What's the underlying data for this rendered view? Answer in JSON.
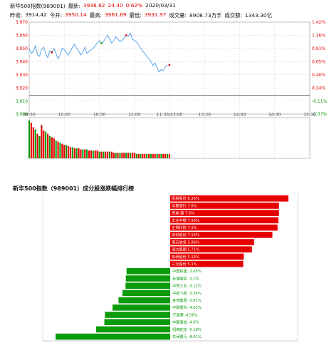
{
  "header": {
    "line1": [
      {
        "text": "新华500指数(989001)",
        "cls": ""
      },
      {
        "text": "最新:",
        "cls": ""
      },
      {
        "text": "3938.82",
        "cls": "red"
      },
      {
        "text": "24.40",
        "cls": "red"
      },
      {
        "text": "0.62%",
        "cls": "red"
      },
      {
        "text": "2020/03/31",
        "cls": ""
      }
    ],
    "line2": [
      {
        "text": "昨收:",
        "cls": ""
      },
      {
        "text": "3914.42",
        "cls": ""
      },
      {
        "text": "今开:",
        "cls": ""
      },
      {
        "text": "3950.14",
        "cls": "red"
      },
      {
        "text": "最高:",
        "cls": ""
      },
      {
        "text": "3961.69",
        "cls": "red"
      },
      {
        "text": "最低:",
        "cls": ""
      },
      {
        "text": "3931.97",
        "cls": "red"
      },
      {
        "text": "成交量:",
        "cls": ""
      },
      {
        "text": "8908.73万手",
        "cls": ""
      },
      {
        "text": "成交额:",
        "cls": ""
      },
      {
        "text": "1343.30亿",
        "cls": ""
      }
    ]
  },
  "chart_data": [
    {
      "type": "line",
      "name": "intraday",
      "prev_close": 3914.42,
      "ylim": [
        3900,
        3970
      ],
      "y_ticks": [
        {
          "v": 3970,
          "label": "3,970",
          "pct": "1.42%",
          "color": "#e60000"
        },
        {
          "v": 3960,
          "label": "3,960",
          "pct": "1.16%",
          "color": "#e60000"
        },
        {
          "v": 3950,
          "label": "3,950",
          "pct": "0.91%",
          "color": "#e60000"
        },
        {
          "v": 3940,
          "label": "3,940",
          "pct": "0.65%",
          "color": "#e60000"
        },
        {
          "v": 3930,
          "label": "3,930",
          "pct": "0.40%",
          "color": "#e60000"
        },
        {
          "v": 3920,
          "label": "3,920",
          "pct": "0.14%",
          "color": "#e60000"
        },
        {
          "v": 3910,
          "label": "3,910",
          "pct": "-0.11%",
          "color": "#0a9b0a"
        },
        {
          "v": 3900,
          "label": "3,900",
          "pct": "-0.37%",
          "color": "#0a9b0a"
        }
      ],
      "x_ticks": [
        "09:30",
        "10:00",
        "10:30",
        "11:00",
        "11:30/13:00",
        "13:30",
        "14:00",
        "14:30",
        "15:00"
      ],
      "price": [
        3950.1,
        3946,
        3948,
        3952,
        3945,
        3944,
        3949,
        3951,
        3946,
        3943,
        3948,
        3947,
        3950,
        3946,
        3942,
        3945,
        3950,
        3949,
        3947,
        3945,
        3948,
        3951,
        3953,
        3950,
        3948,
        3945,
        3947,
        3951,
        3946,
        3948,
        3949,
        3950,
        3952,
        3954,
        3956,
        3954,
        3955,
        3958,
        3960,
        3957,
        3954,
        3956,
        3959,
        3957,
        3955,
        3956,
        3958,
        3960,
        3959,
        3961.7,
        3957,
        3956,
        3955,
        3953,
        3950,
        3948,
        3946,
        3944,
        3942,
        3940,
        3937,
        3939,
        3935,
        3932,
        3934,
        3933,
        3936,
        3937,
        3937.5
      ],
      "markers": [
        {
          "i": 11,
          "c": "#e60000"
        },
        {
          "i": 35,
          "c": "#0a9b0a"
        },
        {
          "i": 47,
          "c": "#e60000"
        },
        {
          "i": 68,
          "c": "#e60000"
        }
      ],
      "volume": [
        34,
        32,
        28,
        26,
        22,
        20,
        30,
        25,
        24,
        22,
        20,
        19,
        18,
        16,
        15,
        14,
        13,
        12,
        12,
        11,
        10,
        10,
        9,
        9,
        9,
        8,
        8,
        8,
        8,
        7,
        7,
        7,
        7,
        7,
        6,
        6,
        6,
        6,
        6,
        6,
        6,
        5,
        5,
        5,
        5,
        5,
        5,
        5,
        5,
        5,
        5,
        5,
        4,
        4,
        4,
        4,
        4,
        4,
        4,
        4,
        4,
        4,
        4,
        4,
        4,
        4,
        4,
        4,
        4
      ],
      "volume_colors": [
        "g",
        "r",
        "r",
        "g",
        "r",
        "g",
        "r",
        "r",
        "g",
        "r",
        "g",
        "r",
        "r",
        "g",
        "r",
        "g",
        "r",
        "r",
        "g",
        "r",
        "r",
        "g",
        "r",
        "g",
        "r",
        "r",
        "g",
        "r",
        "g",
        "r",
        "r",
        "g",
        "r",
        "r",
        "g",
        "r",
        "g",
        "r",
        "r",
        "g",
        "r",
        "r",
        "g",
        "r",
        "g",
        "r",
        "r",
        "g",
        "r",
        "g",
        "r",
        "r",
        "g",
        "r",
        "g",
        "r",
        "r",
        "g",
        "r",
        "g",
        "r",
        "r",
        "g",
        "r",
        "g",
        "r",
        "r",
        "g",
        "r"
      ]
    },
    {
      "type": "bar",
      "name": "ranking",
      "title": "新华500指数（989001）成分股涨跌幅排行榜",
      "categories": [
        "民和股份",
        "华夏银行",
        "哥弟·德",
        "华业中银",
        "正邦科技",
        "安科股份",
        "南天信息",
        "海大集团",
        "有研股份",
        "三元股份",
        "中国铁建",
        "长源国际",
        "中铁工业",
        "中航飞机",
        "金地集团",
        "中联重科",
        "宁波港",
        "中国海龙",
        "招商蛇龙",
        "东吴银行"
      ],
      "labels": [
        "民和股份 8.26%",
        "华夏银行 7.6%",
        "哥弟·德 7.6%",
        "华业中银 7.56%",
        "正邦科技 7.5%",
        "安科股份 7.14%",
        "南天信息 5.86%",
        "海大集团 5.71%",
        "有研股份 5.14%",
        "三元股份 5.1%",
        "中国铁建 -3.05%",
        "长源国际 -3.1%",
        "中铁工业 -3.12%",
        "中航飞机 -3.34%",
        "金地集团 -3.61%",
        "中联重科 -4.03%",
        "宁波港 -4.56%",
        "中国海龙 -4.6%",
        "招商蛇龙 -5.18%",
        "东吴银行 -8.01%"
      ],
      "values": [
        8.26,
        7.6,
        7.6,
        7.56,
        7.5,
        7.14,
        5.86,
        5.71,
        5.14,
        5.1,
        -3.05,
        -3.1,
        -3.12,
        -3.34,
        -3.61,
        -4.03,
        -4.56,
        -4.6,
        -5.18,
        -8.01
      ]
    }
  ],
  "colors": {
    "up": "#e60000",
    "down": "#0a9b0a",
    "line": "#4a9be8",
    "grid": "#d8d8d8"
  }
}
